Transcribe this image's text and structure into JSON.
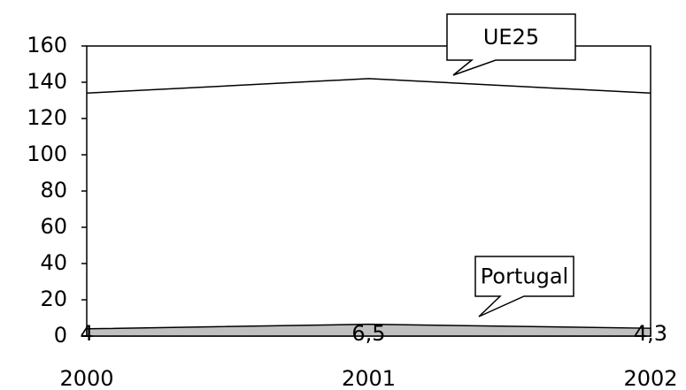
{
  "chart_data": {
    "type": "line",
    "categories": [
      "2000",
      "2001",
      "2002"
    ],
    "series": [
      {
        "name": "UE25",
        "color": "#000000",
        "values": [
          134,
          142,
          134
        ]
      },
      {
        "name": "Portugal",
        "color": "#000000",
        "fill": "#c0c0c0",
        "values": [
          4,
          6.5,
          4.3
        ],
        "value_labels": [
          "4",
          "6,5",
          "4,3"
        ]
      }
    ],
    "ylim": [
      0,
      160
    ],
    "yticks": [
      0,
      20,
      40,
      60,
      80,
      100,
      120,
      140,
      160
    ]
  }
}
